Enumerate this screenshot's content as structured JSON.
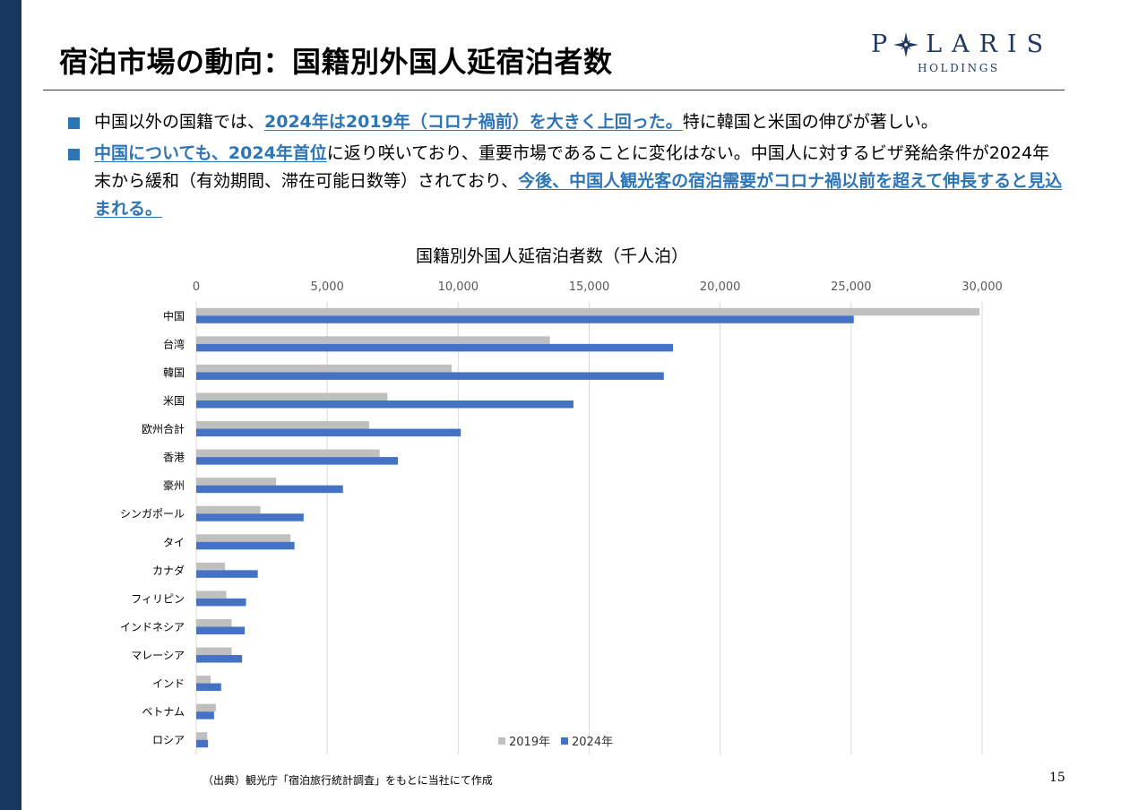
{
  "slide": {
    "title": "宿泊市場の動向：国籍別外国人延宿泊者数",
    "page_number": "15",
    "accent_color": "#2e75b6",
    "side_bar_color": "#17375e"
  },
  "logo": {
    "line1_left": "P",
    "line1_right": "LARIS",
    "line2": "HOLDINGS",
    "icon": "compass-star-icon"
  },
  "bullets": [
    {
      "parts": [
        {
          "text": "中国以外の国籍では、",
          "highlight": false
        },
        {
          "text": "2024年は2019年（コロナ禍前）を大きく上回った。",
          "highlight": true
        },
        {
          "text": "特に韓国と米国の伸びが著しい。",
          "highlight": false
        }
      ]
    },
    {
      "parts": [
        {
          "text": "中国についても、2024年首位",
          "highlight": true
        },
        {
          "text": "に返り咲いており、重要市場であることに変化はない。中国人に対するビザ発給条件が2024年末から緩和（有効期間、滞在可能日数等）されており、",
          "highlight": false
        },
        {
          "text": "今後、中国人観光客の宿泊需要がコロナ禍以前を超えて伸長すると見込まれる。",
          "highlight": true
        }
      ]
    }
  ],
  "source_note": "（出典）観光庁「宿泊旅行統計調査」をもとに当社にて作成",
  "chart_data": {
    "type": "bar",
    "orientation": "horizontal",
    "title": "国籍別外国人延宿泊者数（千人泊）",
    "xlim": [
      0,
      30000
    ],
    "x_ticks": [
      0,
      5000,
      10000,
      15000,
      20000,
      25000,
      30000
    ],
    "x_tick_labels": [
      "0",
      "5,000",
      "10,000",
      "15,000",
      "20,000",
      "25,000",
      "30,000"
    ],
    "grid": true,
    "legend_position": "bottom",
    "categories": [
      "中国",
      "台湾",
      "韓国",
      "米国",
      "欧州合計",
      "香港",
      "豪州",
      "シンガポール",
      "タイ",
      "カナダ",
      "フィリピン",
      "インドネシア",
      "マレーシア",
      "インド",
      "ベトナム",
      "ロシア"
    ],
    "series": [
      {
        "name": "2019年",
        "color": "#bfbfbf",
        "values": [
          29900,
          13500,
          9750,
          7300,
          6600,
          7000,
          3050,
          2450,
          3600,
          1100,
          1150,
          1350,
          1350,
          550,
          750,
          420
        ]
      },
      {
        "name": "2024年",
        "color": "#4472c4",
        "values": [
          25100,
          18200,
          17850,
          14400,
          10100,
          7700,
          5600,
          4100,
          3750,
          2350,
          1900,
          1850,
          1750,
          950,
          680,
          450
        ]
      }
    ]
  }
}
